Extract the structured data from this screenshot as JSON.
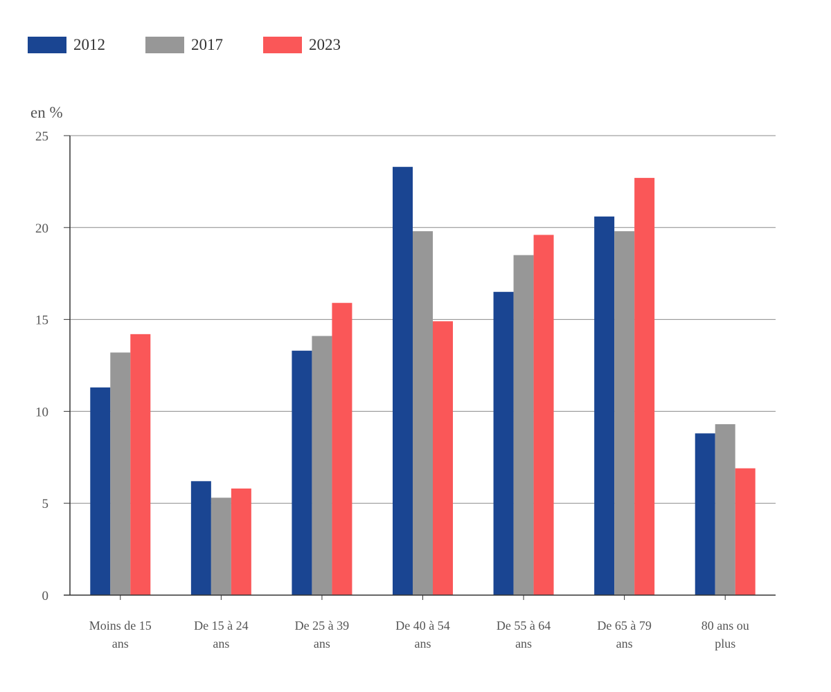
{
  "chart_data": {
    "type": "bar",
    "ylabel": "en %",
    "ylim": [
      0,
      25
    ],
    "yticks": [
      0,
      5,
      10,
      15,
      20,
      25
    ],
    "grid": true,
    "legend_position": "top-left",
    "categories": [
      [
        "Moins de 15",
        "ans"
      ],
      [
        "De 15 à 24",
        "ans"
      ],
      [
        "De 25 à 39",
        "ans"
      ],
      [
        "De 40 à 54",
        "ans"
      ],
      [
        "De 55 à 64",
        "ans"
      ],
      [
        "De 65 à 79",
        "ans"
      ],
      [
        "80 ans ou",
        "plus"
      ]
    ],
    "series": [
      {
        "name": "2012",
        "color": "#1a4592",
        "values": [
          11.3,
          6.2,
          13.3,
          23.3,
          16.5,
          20.6,
          8.8
        ]
      },
      {
        "name": "2017",
        "color": "#979797",
        "values": [
          13.2,
          5.3,
          14.1,
          19.8,
          18.5,
          19.8,
          9.3
        ]
      },
      {
        "name": "2023",
        "color": "#fa5758",
        "values": [
          14.2,
          5.8,
          15.9,
          14.9,
          19.6,
          22.7,
          6.9
        ]
      }
    ]
  }
}
